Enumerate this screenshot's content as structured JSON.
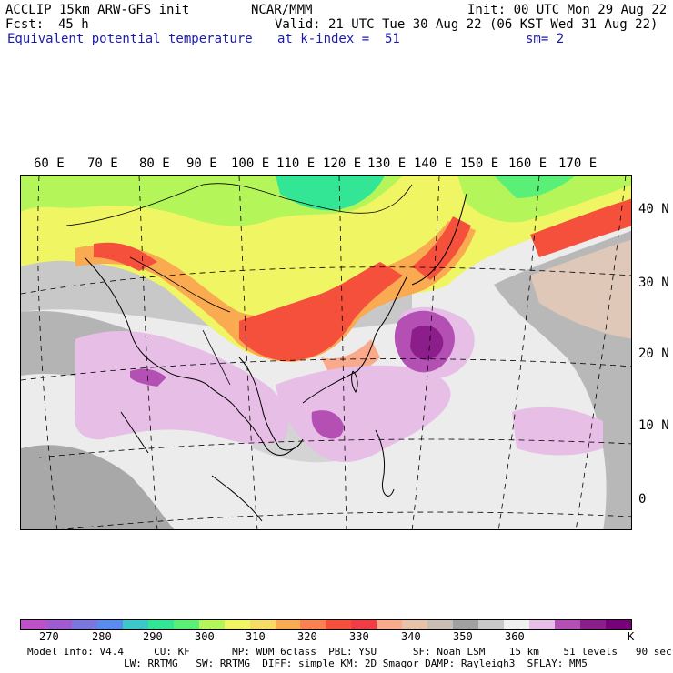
{
  "header": {
    "model": "ACCLIP 15km ARW-GFS init",
    "org": "NCAR/MMM",
    "init": "Init: 00 UTC Mon 29 Aug 22",
    "fcst_label": "Fcst:",
    "fcst_value": "45 h",
    "valid": "Valid: 21 UTC Tue 30 Aug 22 (06 KST Wed 31 Aug 22)",
    "field": "Equivalent potential temperature",
    "level": "at k-index =  51",
    "smooth": "sm= 2"
  },
  "map": {
    "lon_labels": [
      "60 E",
      "70 E",
      "80 E",
      "90 E",
      "100 E",
      "110 E",
      "120 E",
      "130 E",
      "140 E",
      "150 E",
      "160 E",
      "170 E"
    ],
    "lat_labels": [
      "40 N",
      "30 N",
      "20 N",
      "10 N",
      "0"
    ]
  },
  "colorbar": {
    "colors": [
      "#c050c8",
      "#a05ad2",
      "#7a78e0",
      "#5a8cf0",
      "#3cc8c8",
      "#32e696",
      "#5af078",
      "#b4f55a",
      "#f0f564",
      "#f5dc64",
      "#faaa50",
      "#fa8250",
      "#f5503c",
      "#f03c46",
      "#faaa8c",
      "#e6c3aa",
      "#c8beb4",
      "#a0a0a0",
      "#c8c8c8",
      "#f0f0f0",
      "#e6bee6",
      "#b450b4",
      "#8c1e8c",
      "#780078"
    ],
    "labels": [
      "270",
      "280",
      "290",
      "300",
      "310",
      "320",
      "330",
      "340",
      "350",
      "360"
    ],
    "unit": "K"
  },
  "footer": {
    "line1": "Model Info: V4.4     CU: KF       MP: WDM 6class  PBL: YSU      SF: Noah LSM    15 km    51 levels   90 sec",
    "line2": "                LW: RRTMG   SW: RRTMG  DIFF: simple KM: 2D Smagor DAMP: Rayleigh3  SFLAY: MM5"
  }
}
